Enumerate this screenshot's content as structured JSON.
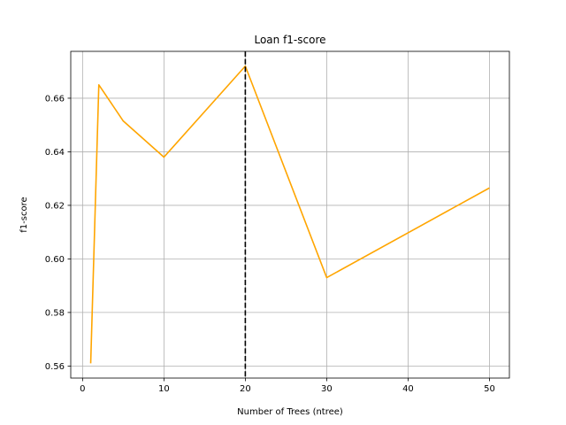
{
  "chart_data": {
    "type": "line",
    "title": "Loan f1-score",
    "xlabel": "Number of Trees (ntree)",
    "ylabel": "f1-score",
    "xlim": [
      -1.45,
      52.45
    ],
    "ylim": [
      0.5555,
      0.6775
    ],
    "xticks": [
      0,
      10,
      20,
      30,
      40,
      50
    ],
    "yticks": [
      0.56,
      0.58,
      0.6,
      0.62,
      0.64,
      0.66
    ],
    "ytick_labels": [
      "0.56",
      "0.58",
      "0.60",
      "0.62",
      "0.64",
      "0.66"
    ],
    "grid": true,
    "series": [
      {
        "color": "#FFA500",
        "x": [
          1,
          2,
          5,
          10,
          20,
          30,
          50
        ],
        "y": [
          0.561,
          0.665,
          0.6515,
          0.638,
          0.672,
          0.593,
          0.6265
        ]
      }
    ],
    "vline": {
      "x": 20,
      "color": "#000000",
      "style": "dashed"
    }
  }
}
